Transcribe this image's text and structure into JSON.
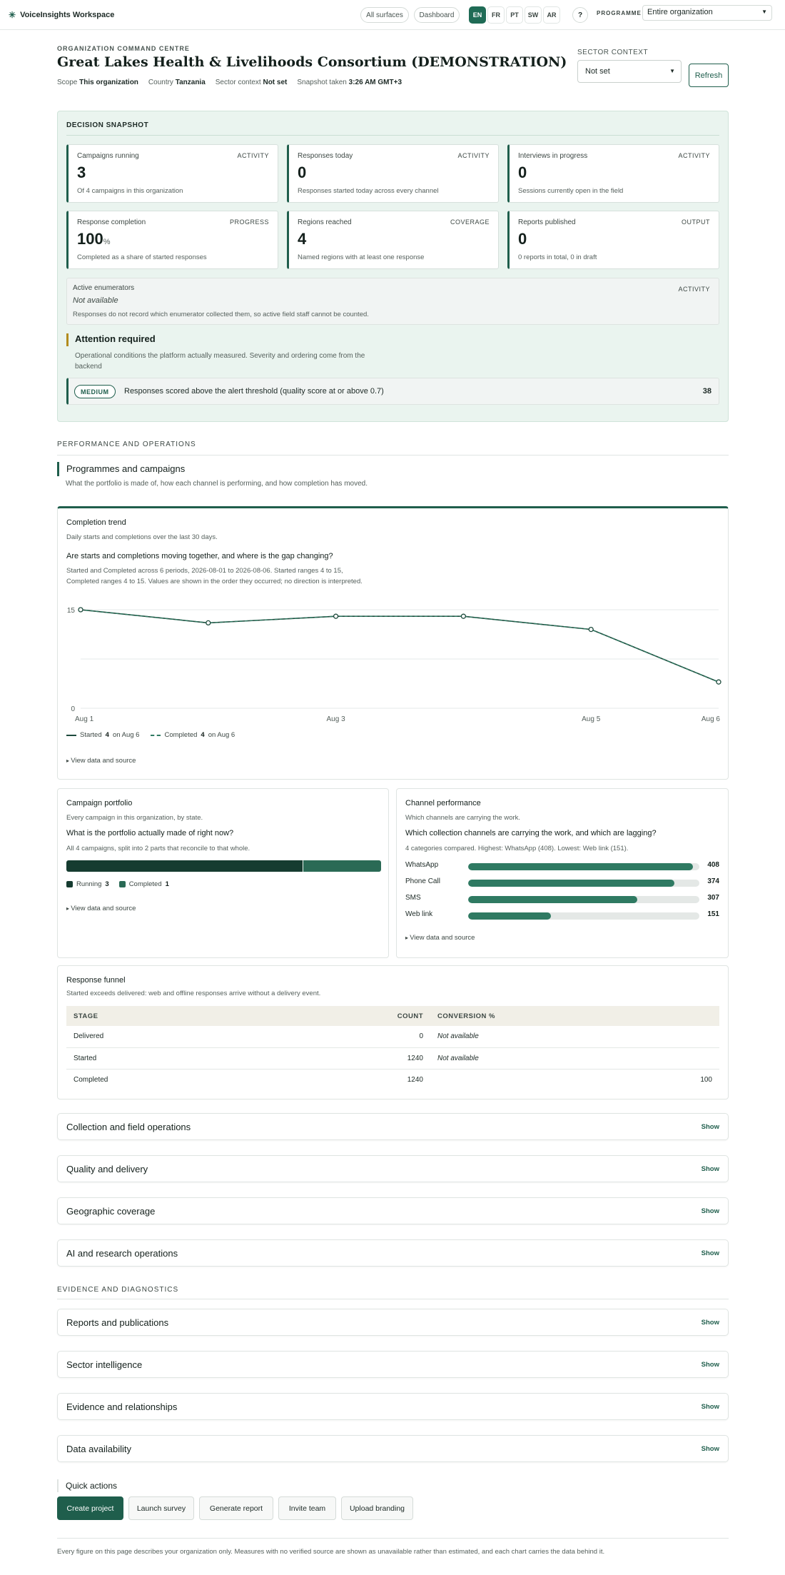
{
  "topbar": {
    "brand": "VoiceInsights Workspace",
    "all_surfaces": "All surfaces",
    "dashboard": "Dashboard",
    "languages": [
      "EN",
      "FR",
      "PT",
      "SW",
      "AR"
    ],
    "help": "?",
    "programme_label": "PROGRAMME",
    "programme_value": "Entire organization"
  },
  "header": {
    "eyebrow": "ORGANIZATION COMMAND CENTRE",
    "title": "Great Lakes Health & Livelihoods Consortium (DEMONSTRATION)",
    "meta": [
      {
        "label": "Scope",
        "value": "This organization"
      },
      {
        "label": "Country",
        "value": "Tanzania"
      },
      {
        "label": "Sector context",
        "value": "Not set"
      },
      {
        "label": "Snapshot taken",
        "value": "3:26 AM GMT+3"
      }
    ],
    "sector_label": "SECTOR CONTEXT",
    "sector_value": "Not set",
    "refresh": "Refresh"
  },
  "snapshot": {
    "title": "DECISION SNAPSHOT",
    "kpis": [
      {
        "label": "Campaigns running",
        "tag": "ACTIVITY",
        "value": "3",
        "unit": "",
        "desc": "Of 4 campaigns in this organization"
      },
      {
        "label": "Responses today",
        "tag": "ACTIVITY",
        "value": "0",
        "unit": "",
        "desc": "Responses started today across every channel"
      },
      {
        "label": "Interviews in progress",
        "tag": "ACTIVITY",
        "value": "0",
        "unit": "",
        "desc": "Sessions currently open in the field"
      },
      {
        "label": "Response completion",
        "tag": "PROGRESS",
        "value": "100",
        "unit": "%",
        "desc": "Completed as a share of started responses"
      },
      {
        "label": "Regions reached",
        "tag": "COVERAGE",
        "value": "4",
        "unit": "",
        "desc": "Named regions with at least one response"
      },
      {
        "label": "Reports published",
        "tag": "OUTPUT",
        "value": "0",
        "unit": "",
        "desc": "0 reports in total, 0 in draft"
      }
    ],
    "enumerators": {
      "label": "Active enumerators",
      "value": "Not available",
      "tag": "ACTIVITY",
      "desc": "Responses do not record which enumerator collected them, so active field staff cannot be counted."
    },
    "attention": {
      "title": "Attention required",
      "desc": "Operational conditions the platform actually measured. Severity and ordering come from the backend"
    },
    "alert": {
      "severity": "MEDIUM",
      "text": "Responses scored above the alert threshold (quality score at or above 0.7)",
      "count": "38"
    }
  },
  "performance": {
    "group_title": "PERFORMANCE AND OPERATIONS",
    "section_title": "Programmes and campaigns",
    "section_desc": "What the portfolio is made of, how each channel is performing, and how completion has moved."
  },
  "trend": {
    "title": "Completion trend",
    "subtitle": "Daily starts and completions over the last 30 days.",
    "question": "Are starts and completions moving together, and where is the gap changing?",
    "desc": "Started and Completed across 6 periods, 2026-08-01 to 2026-08-06. Started ranges 4 to 15, Completed ranges 4 to 15. Values are shown in the order they occurred; no direction is interpreted.",
    "legend": [
      {
        "name": "Started",
        "value": "4",
        "suffix": "on Aug 6"
      },
      {
        "name": "Completed",
        "value": "4",
        "suffix": "on Aug 6"
      }
    ],
    "view_data": "View data and source"
  },
  "chart_data": {
    "type": "line",
    "x": [
      "Aug 1",
      "Aug 2",
      "Aug 3",
      "Aug 4",
      "Aug 5",
      "Aug 6"
    ],
    "x_tick_labels": [
      "Aug 1",
      "Aug 3",
      "Aug 5",
      "Aug 6"
    ],
    "series": [
      {
        "name": "Started",
        "values": [
          15,
          13,
          14,
          14,
          12,
          4
        ]
      },
      {
        "name": "Completed",
        "values": [
          15,
          13,
          14,
          14,
          12,
          4
        ]
      }
    ],
    "ylim": [
      0,
      15
    ],
    "y_ticks": [
      0,
      15
    ],
    "grid": true,
    "legend": "bottom-left"
  },
  "portfolio": {
    "title": "Campaign portfolio",
    "subtitle": "Every campaign in this organization, by state.",
    "question": "What is the portfolio actually made of right now?",
    "desc": "All 4 campaigns, split into 2 parts that reconcile to that whole.",
    "parts": [
      {
        "name": "Running",
        "value": 3,
        "color": "#163c30"
      },
      {
        "name": "Completed",
        "value": 1,
        "color": "#2a6a55"
      }
    ],
    "view_data": "View data and source"
  },
  "channels": {
    "title": "Channel performance",
    "subtitle": "Which channels are carrying the work.",
    "question": "Which collection channels are carrying the work, and which are lagging?",
    "desc": "4 categories compared. Highest: WhatsApp (408). Lowest: Web link (151).",
    "max": 420,
    "items": [
      {
        "name": "WhatsApp",
        "value": 408
      },
      {
        "name": "Phone Call",
        "value": 374
      },
      {
        "name": "SMS",
        "value": 307
      },
      {
        "name": "Web link",
        "value": 151
      }
    ],
    "view_data": "View data and source"
  },
  "funnel": {
    "title": "Response funnel",
    "subtitle": "Started exceeds delivered: web and offline responses arrive without a delivery event.",
    "headers": [
      "STAGE",
      "COUNT",
      "CONVERSION %"
    ],
    "rows": [
      {
        "stage": "Delivered",
        "count": "0",
        "conversion": "Not available"
      },
      {
        "stage": "Started",
        "count": "1240",
        "conversion": "Not available"
      },
      {
        "stage": "Completed",
        "count": "1240",
        "conversion": "100"
      }
    ]
  },
  "accordions_perf": [
    {
      "title": "Collection and field operations",
      "action": "Show"
    },
    {
      "title": "Quality and delivery",
      "action": "Show"
    },
    {
      "title": "Geographic coverage",
      "action": "Show"
    },
    {
      "title": "AI and research operations",
      "action": "Show"
    }
  ],
  "evidence": {
    "group_title": "EVIDENCE AND DIAGNOSTICS"
  },
  "accordions_evidence": [
    {
      "title": "Reports and publications",
      "action": "Show"
    },
    {
      "title": "Sector intelligence",
      "action": "Show"
    },
    {
      "title": "Evidence and relationships",
      "action": "Show"
    },
    {
      "title": "Data availability",
      "action": "Show"
    }
  ],
  "quick_actions": {
    "title": "Quick actions",
    "buttons": [
      "Create project",
      "Launch survey",
      "Generate report",
      "Invite team",
      "Upload branding"
    ]
  },
  "footer": "Every figure on this page describes your organization only. Measures with no verified source are shown as unavailable rather than estimated, and each chart carries the data behind it.",
  "colors": {
    "accent": "#1f5e4c",
    "attention": "#b28b1d",
    "snapshot_bg": "#eaf4ef"
  }
}
